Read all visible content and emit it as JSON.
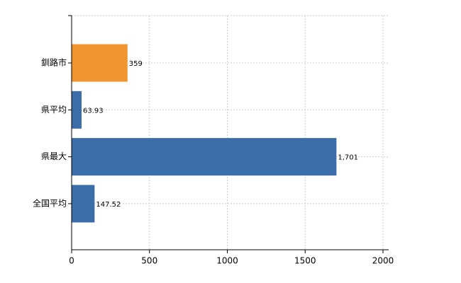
{
  "chart_data": {
    "type": "bar",
    "orientation": "horizontal",
    "categories": [
      "釧路市",
      "県平均",
      "県最大",
      "全国平均"
    ],
    "values": [
      359,
      63.93,
      1701,
      147.52
    ],
    "value_labels": [
      "359",
      "63.93",
      "1,701",
      "147.52"
    ],
    "colors": [
      "#f0952f",
      "#3b6ea8",
      "#3b6ea8",
      "#3b6ea8"
    ],
    "xlim": [
      0,
      2000
    ],
    "xticks": [
      0,
      500,
      1000,
      1500,
      2000
    ],
    "grid": true
  }
}
